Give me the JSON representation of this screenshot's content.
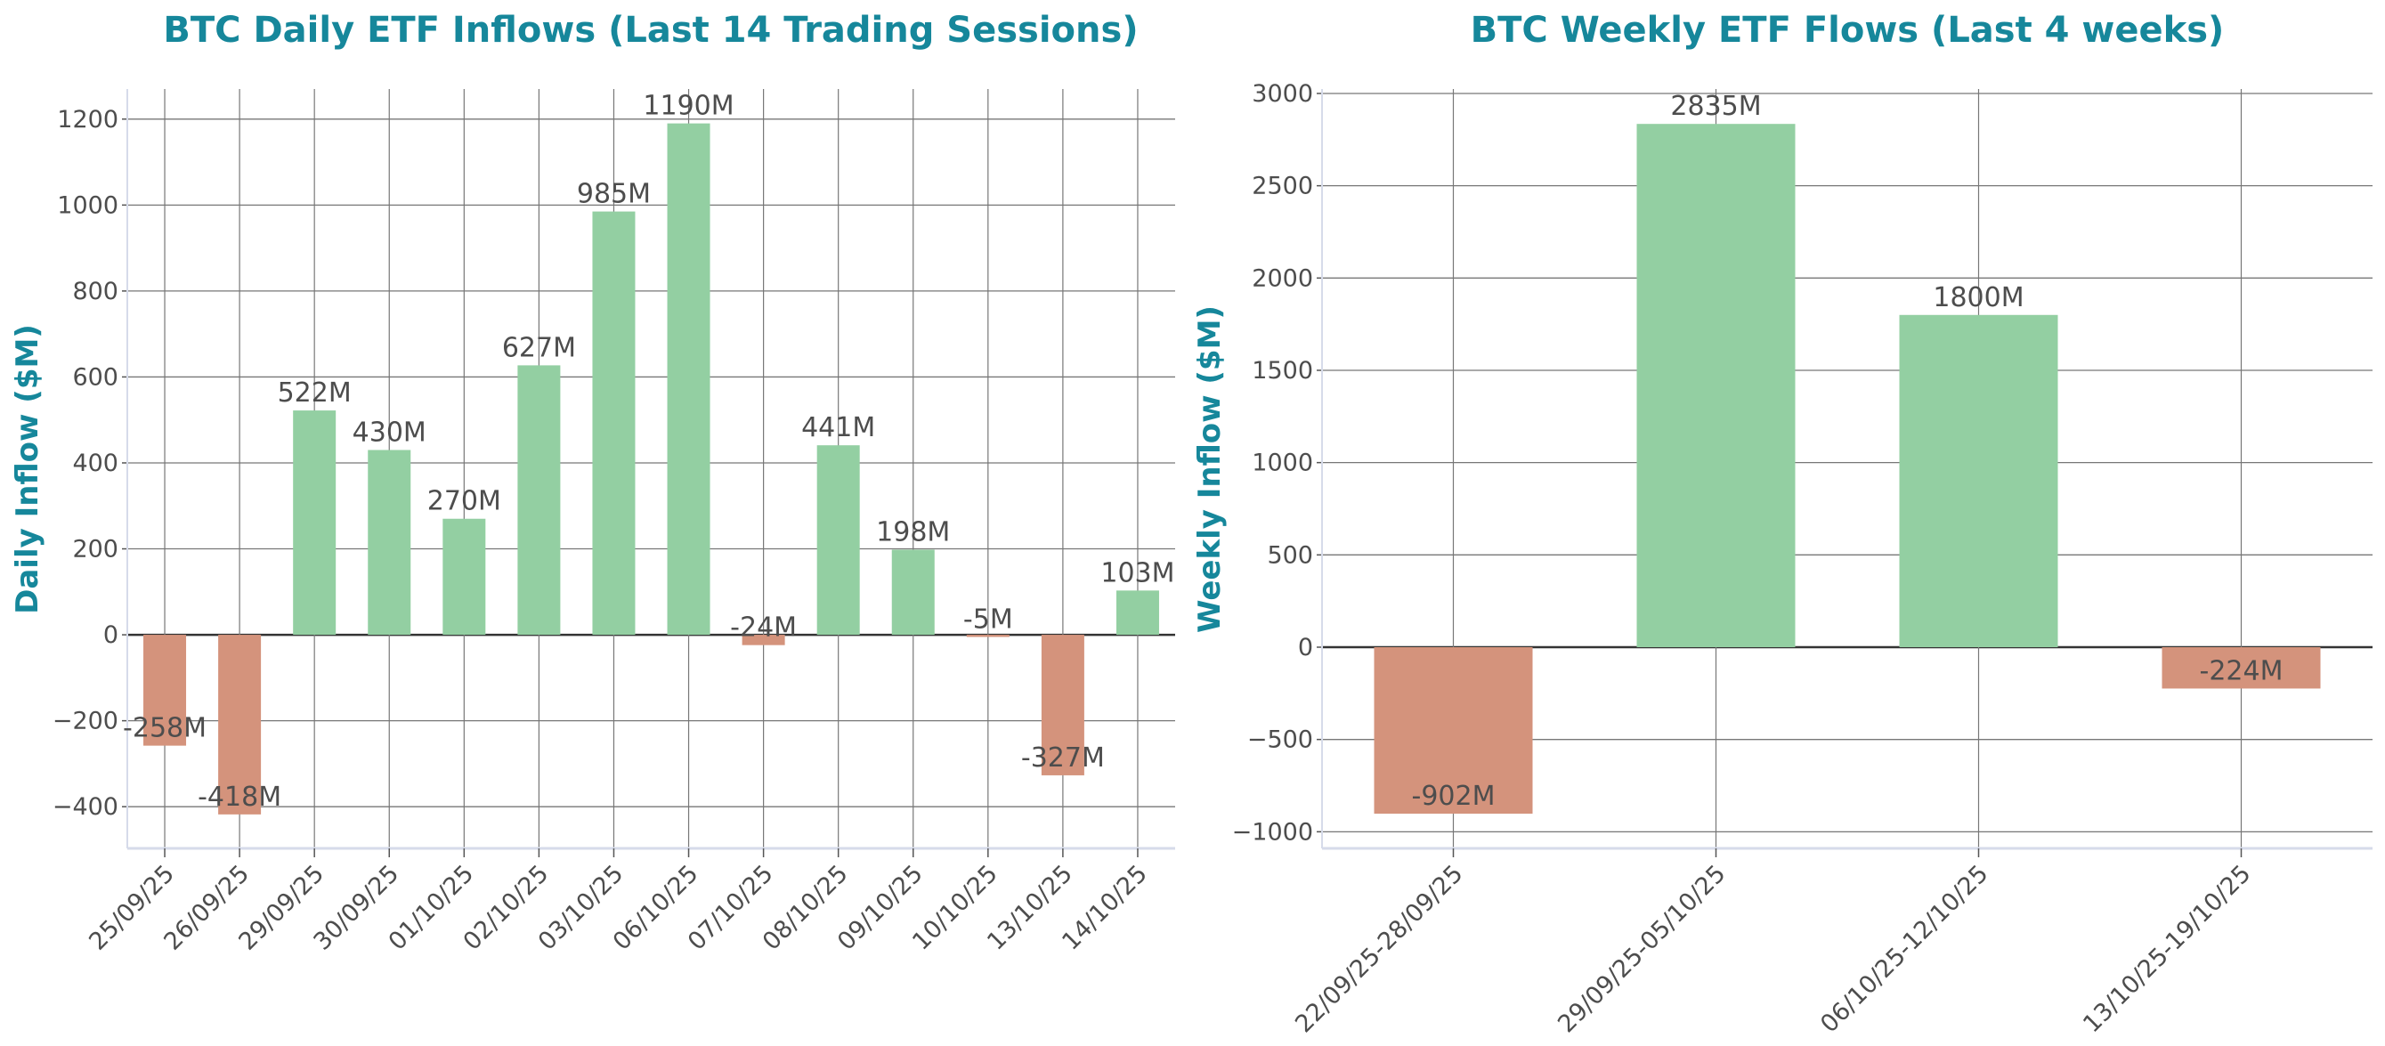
{
  "chart_data": [
    {
      "type": "bar",
      "title": "BTC Daily ETF Inflows (Last 14 Trading Sessions)",
      "xlabel": "",
      "ylabel": "Daily Inflow ($M)",
      "categories": [
        "25/09/25",
        "26/09/25",
        "29/09/25",
        "30/09/25",
        "01/10/25",
        "02/10/25",
        "03/10/25",
        "06/10/25",
        "07/10/25",
        "08/10/25",
        "09/10/25",
        "10/10/25",
        "13/10/25",
        "14/10/25"
      ],
      "values": [
        -258,
        -418,
        522,
        430,
        270,
        627,
        985,
        1190,
        -24,
        441,
        198,
        -5,
        -327,
        103
      ],
      "data_labels": [
        "-258M",
        "-418M",
        "522M",
        "430M",
        "270M",
        "627M",
        "985M",
        "1190M",
        "-24M",
        "441M",
        "198M",
        "-5M",
        "-327M",
        "103M"
      ],
      "ylim": [
        -497,
        1270
      ],
      "yticks": [
        -400,
        -200,
        0,
        200,
        400,
        600,
        800,
        1000,
        1200
      ],
      "ytick_labels": [
        "−400",
        "−200",
        "0",
        "200",
        "400",
        "600",
        "800",
        "1000",
        "1200"
      ],
      "grid": true
    },
    {
      "type": "bar",
      "title": "BTC Weekly ETF Flows (Last 4 weeks)",
      "xlabel": "",
      "ylabel": "Weekly Inflow ($M)",
      "categories": [
        "22/09/25-28/09/25",
        "29/09/25-05/10/25",
        "06/10/25-12/10/25",
        "13/10/25-19/10/25"
      ],
      "values": [
        -902,
        2835,
        1800,
        -224
      ],
      "data_labels": [
        "-902M",
        "2835M",
        "1800M",
        "-224M"
      ],
      "ylim": [
        -1090,
        3024
      ],
      "yticks": [
        -1000,
        -500,
        0,
        500,
        1000,
        1500,
        2000,
        2500,
        3000
      ],
      "ytick_labels": [
        "−1000",
        "−500",
        "0",
        "500",
        "1000",
        "1500",
        "2000",
        "2500",
        "3000"
      ],
      "grid": true
    }
  ],
  "colors": {
    "positive": "#93cfa2",
    "negative": "#d4937c",
    "title": "#16879b",
    "text": "#4d4d4d"
  }
}
